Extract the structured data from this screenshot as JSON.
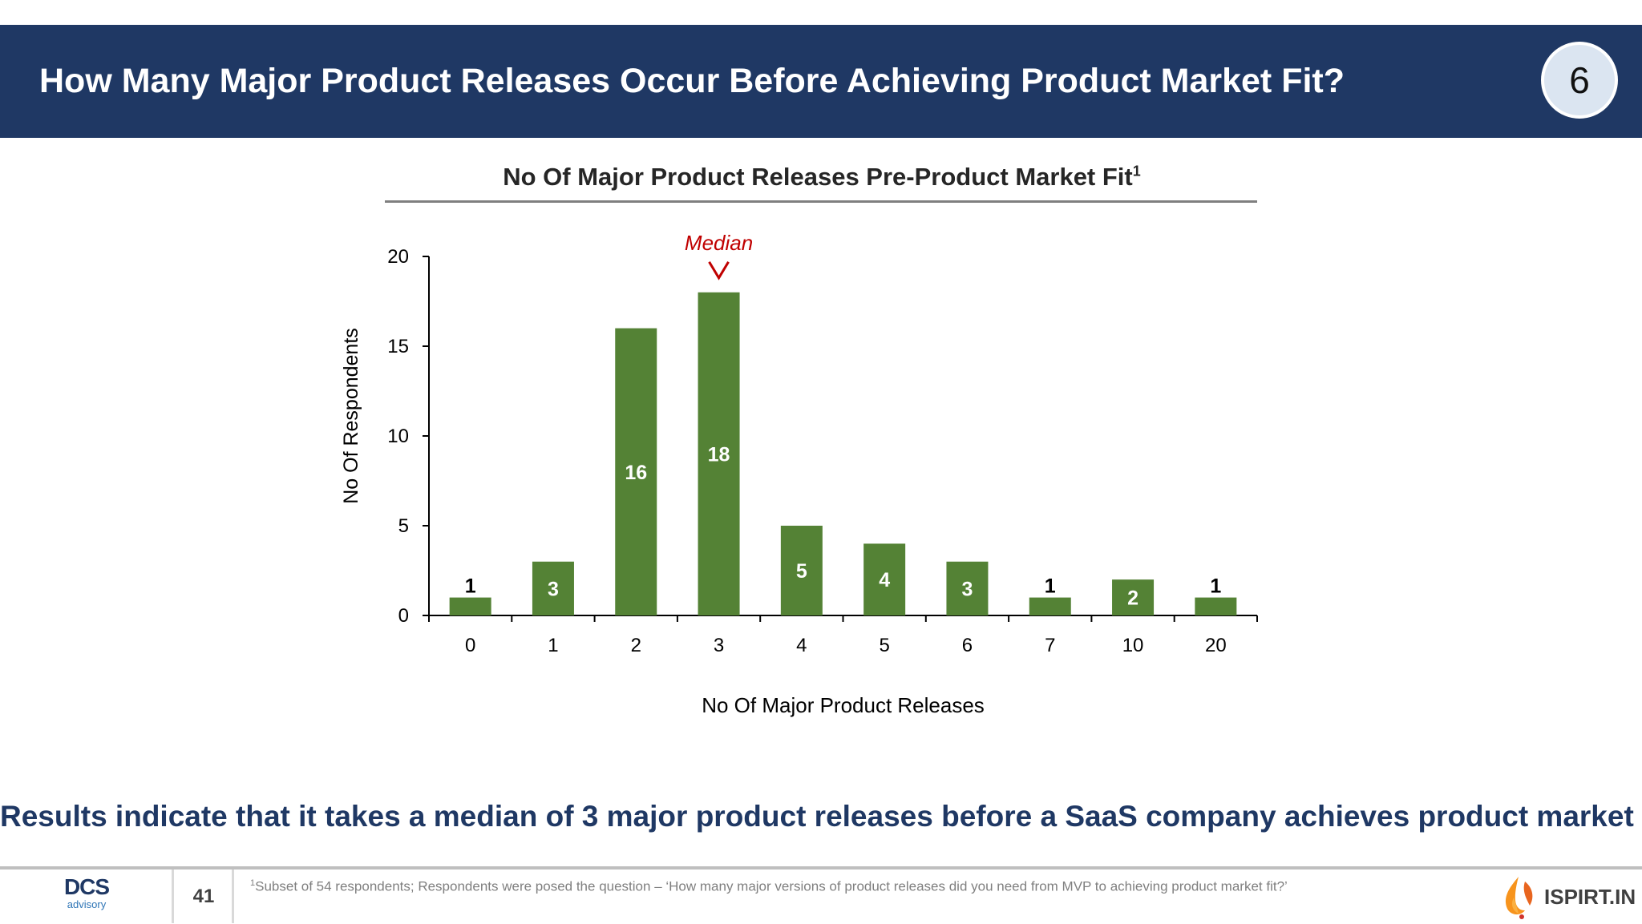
{
  "header": {
    "title": "How Many Major Product Releases Occur Before Achieving Product Market Fit?",
    "section_number": "6"
  },
  "chart_title": {
    "text": "No Of Major Product Releases Pre-Product Market Fit",
    "superscript": "1"
  },
  "chart_data": {
    "type": "bar",
    "title": "No Of Major Product Releases Pre-Product Market Fit",
    "xlabel": "No Of Major Product Releases",
    "ylabel": "No Of Respondents",
    "categories": [
      "0",
      "1",
      "2",
      "3",
      "4",
      "5",
      "6",
      "7",
      "10",
      "20"
    ],
    "values": [
      1,
      3,
      16,
      18,
      5,
      4,
      3,
      1,
      2,
      1
    ],
    "ylim": [
      0,
      20
    ],
    "yticks": [
      0,
      5,
      10,
      15,
      20
    ],
    "bar_color": "#548235",
    "annotation": {
      "text": "Median",
      "category": "3",
      "color": "#c00000"
    },
    "grid": false,
    "legend": "none"
  },
  "conclusion": "Results indicate that it takes a median of 3 major product releases before a SaaS company achieves product market fit",
  "footer": {
    "page_number": "41",
    "footnote_marker": "1",
    "footnote": "Subset of 54 respondents; Respondents were posed the question – ‘How many major versions of product releases did you need from MVP to achieving product market fit?’",
    "left_logo": {
      "main": "DCS",
      "sub": "advisory"
    },
    "right_logo": {
      "text": "ISPIRT.IN"
    }
  },
  "colors": {
    "header_bg": "#1f3864",
    "bar": "#548235",
    "median": "#c00000",
    "conclusion": "#1f3864"
  }
}
